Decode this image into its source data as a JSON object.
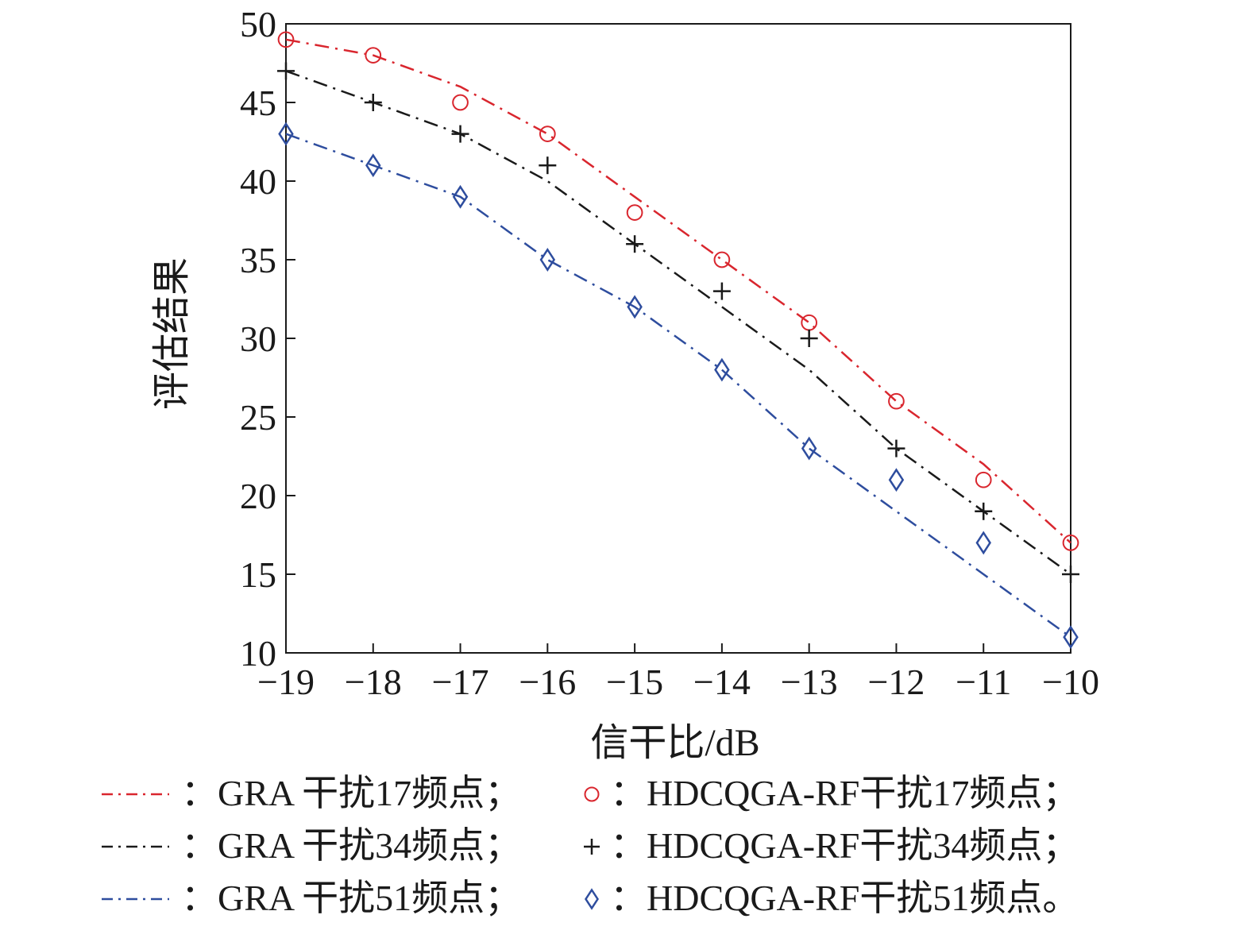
{
  "chart_data": {
    "type": "line",
    "title": "",
    "xlabel": "信干比/dB",
    "ylabel": "评估结果",
    "xlim": [
      -19,
      -10
    ],
    "ylim": [
      10,
      50
    ],
    "x_ticks": [
      -19,
      -18,
      -17,
      -16,
      -15,
      -14,
      -13,
      -12,
      -11,
      -10
    ],
    "x_tick_labels": [
      "−19",
      "−18",
      "−17",
      "−16",
      "−15",
      "−14",
      "−13",
      "−12",
      "−11",
      "−10"
    ],
    "y_ticks": [
      10,
      15,
      20,
      25,
      30,
      35,
      40,
      45,
      50
    ],
    "y_tick_labels": [
      "10",
      "15",
      "20",
      "25",
      "30",
      "35",
      "40",
      "45",
      "50"
    ],
    "x": [
      -19,
      -18,
      -17,
      -16,
      -15,
      -14,
      -13,
      -12,
      -11,
      -10
    ],
    "grid": false,
    "legend_position": "bottom",
    "series": [
      {
        "name": "GRA 干扰17频点",
        "style": "dashdot",
        "color": "#d9262e",
        "values": [
          49,
          48,
          46,
          43,
          39,
          35,
          31,
          26,
          22,
          17
        ]
      },
      {
        "name": "GRA 干扰34频点",
        "style": "dashdot",
        "color": "#1a1a1a",
        "values": [
          47,
          45,
          43,
          40,
          36,
          32,
          28,
          23,
          19,
          15
        ]
      },
      {
        "name": "GRA 干扰51频点",
        "style": "dashdot",
        "color": "#2e4d9e",
        "values": [
          43,
          41,
          39,
          35,
          32,
          28,
          23,
          19,
          15,
          11
        ]
      },
      {
        "name": "HDCQGA-RF干扰17频点",
        "style": "marker",
        "marker": "circle",
        "color": "#d9262e",
        "values": [
          49,
          48,
          45,
          43,
          38,
          35,
          31,
          26,
          21,
          17
        ]
      },
      {
        "name": "HDCQGA-RF干扰34频点",
        "style": "marker",
        "marker": "plus",
        "color": "#1a1a1a",
        "values": [
          47,
          45,
          43,
          41,
          36,
          33,
          30,
          23,
          19,
          15
        ]
      },
      {
        "name": "HDCQGA-RF干扰51频点",
        "style": "marker",
        "marker": "diamond",
        "color": "#2e4d9e",
        "values": [
          43,
          41,
          39,
          35,
          32,
          28,
          23,
          21,
          17,
          11
        ]
      }
    ],
    "legend": [
      {
        "series": 0,
        "text": "：GRA 干扰17频点；"
      },
      {
        "series": 3,
        "text": "：HDCQGA-RF干扰17频点；"
      },
      {
        "series": 1,
        "text": "：GRA 干扰34频点；"
      },
      {
        "series": 4,
        "text": "：HDCQGA-RF干扰34频点；"
      },
      {
        "series": 2,
        "text": "：GRA 干扰51频点；"
      },
      {
        "series": 5,
        "text": "：HDCQGA-RF干扰51频点。"
      }
    ]
  }
}
